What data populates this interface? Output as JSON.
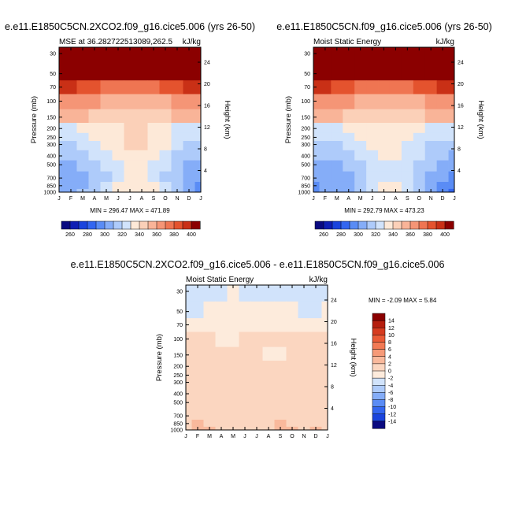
{
  "chart_data": [
    {
      "type": "heatmap",
      "title": "e.e11.E1850C5CN.2XCO2.f09_g16.cice5.006 (yrs 26-50)",
      "left_string": "MSE at 36.282722513089,262.5",
      "right_string": "kJ/kg",
      "ylabel": "Pressure (mb)",
      "y2label": "Height (km)",
      "x_ticks": [
        "J",
        "F",
        "M",
        "A",
        "M",
        "J",
        "J",
        "A",
        "S",
        "O",
        "N",
        "D",
        "J"
      ],
      "y_ticks": [
        "30",
        "50",
        "70",
        "100",
        "150",
        "200",
        "250",
        "300",
        "400",
        "500",
        "700",
        "850",
        "1000"
      ],
      "y_values": [
        30,
        50,
        70,
        100,
        150,
        200,
        250,
        300,
        400,
        500,
        700,
        850,
        1000
      ],
      "y2_ticks": [
        "24",
        "20",
        "16",
        "12",
        "8",
        "4"
      ],
      "y2_values": [
        24,
        20,
        16,
        12,
        8,
        4
      ],
      "min_max_text": "MIN = 296.47 MAX = 471.89",
      "min": 296.47,
      "max": 471.89,
      "colorbar_labels": [
        "260",
        "280",
        "300",
        "320",
        "340",
        "360",
        "380",
        "400"
      ],
      "colorbar_levels": [
        260,
        270,
        280,
        290,
        300,
        310,
        320,
        330,
        340,
        350,
        360,
        370,
        380,
        390,
        400
      ],
      "colorbar_colors": [
        "#0a0a80",
        "#0f1fb4",
        "#1a44dd",
        "#3366f0",
        "#5a8cf5",
        "#85adf8",
        "#aecbfa",
        "#d1e3fb",
        "#fde9d8",
        "#fbd0b8",
        "#f9b498",
        "#f59576",
        "#ef7552",
        "#e4532e",
        "#c93016",
        "#8b0000"
      ],
      "field_class_rows": [
        [
          15,
          15,
          15,
          15,
          15,
          15,
          15,
          15,
          15,
          15,
          15,
          15,
          15
        ],
        [
          15,
          15,
          15,
          15,
          15,
          15,
          15,
          15,
          15,
          15,
          15,
          15,
          15
        ],
        [
          14,
          14,
          13,
          13,
          12,
          12,
          12,
          12,
          12,
          13,
          13,
          14,
          14
        ],
        [
          11,
          11,
          11,
          11,
          10,
          10,
          10,
          10,
          10,
          10,
          11,
          11,
          11
        ],
        [
          10,
          10,
          10,
          9,
          9,
          9,
          9,
          9,
          9,
          9,
          10,
          10,
          10
        ],
        [
          7,
          7,
          8,
          8,
          8,
          8,
          9,
          9,
          8,
          8,
          7,
          7,
          7
        ],
        [
          7,
          7,
          7,
          8,
          8,
          8,
          9,
          9,
          8,
          8,
          7,
          7,
          7
        ],
        [
          6,
          6,
          7,
          7,
          8,
          8,
          9,
          9,
          8,
          8,
          7,
          6,
          6
        ],
        [
          6,
          6,
          6,
          7,
          7,
          8,
          8,
          8,
          8,
          7,
          6,
          6,
          6
        ],
        [
          5,
          5,
          6,
          6,
          7,
          7,
          8,
          8,
          7,
          7,
          6,
          5,
          5
        ],
        [
          5,
          5,
          5,
          6,
          6,
          7,
          8,
          8,
          7,
          6,
          6,
          5,
          5
        ],
        [
          5,
          5,
          5,
          6,
          7,
          8,
          8,
          8,
          8,
          7,
          6,
          5,
          4
        ],
        [
          5,
          5,
          6,
          6,
          7,
          8,
          8,
          8,
          8,
          7,
          6,
          5,
          4
        ]
      ]
    },
    {
      "type": "heatmap",
      "title": "e.e11.E1850C5CN.f09_g16.cice5.006 (yrs 26-50)",
      "left_string": "Moist Static Energy",
      "right_string": "kJ/kg",
      "ylabel": "Pressure (mb)",
      "y2label": "Height (km)",
      "x_ticks": [
        "J",
        "F",
        "M",
        "A",
        "M",
        "J",
        "J",
        "A",
        "S",
        "O",
        "N",
        "D",
        "J"
      ],
      "y_ticks": [
        "30",
        "50",
        "70",
        "100",
        "150",
        "200",
        "250",
        "300",
        "400",
        "500",
        "700",
        "850",
        "1000"
      ],
      "y_values": [
        30,
        50,
        70,
        100,
        150,
        200,
        250,
        300,
        400,
        500,
        700,
        850,
        1000
      ],
      "y2_ticks": [
        "24",
        "20",
        "16",
        "12",
        "8",
        "4"
      ],
      "y2_values": [
        24,
        20,
        16,
        12,
        8,
        4
      ],
      "min_max_text": "MIN = 292.79 MAX = 473.23",
      "min": 292.79,
      "max": 473.23,
      "colorbar_labels": [
        "260",
        "280",
        "300",
        "320",
        "340",
        "360",
        "380",
        "400"
      ],
      "colorbar_levels": [
        260,
        270,
        280,
        290,
        300,
        310,
        320,
        330,
        340,
        350,
        360,
        370,
        380,
        390,
        400
      ],
      "colorbar_colors": [
        "#0a0a80",
        "#0f1fb4",
        "#1a44dd",
        "#3366f0",
        "#5a8cf5",
        "#85adf8",
        "#aecbfa",
        "#d1e3fb",
        "#fde9d8",
        "#fbd0b8",
        "#f9b498",
        "#f59576",
        "#ef7552",
        "#e4532e",
        "#c93016",
        "#8b0000"
      ],
      "field_class_rows": [
        [
          15,
          15,
          15,
          15,
          15,
          15,
          15,
          15,
          15,
          15,
          15,
          15,
          15
        ],
        [
          15,
          15,
          15,
          15,
          15,
          15,
          15,
          15,
          15,
          15,
          15,
          15,
          15
        ],
        [
          14,
          14,
          13,
          13,
          12,
          12,
          12,
          12,
          12,
          13,
          13,
          14,
          14
        ],
        [
          11,
          11,
          11,
          11,
          10,
          10,
          10,
          10,
          10,
          10,
          11,
          11,
          11
        ],
        [
          10,
          10,
          10,
          9,
          9,
          9,
          9,
          9,
          9,
          9,
          10,
          10,
          10
        ],
        [
          7,
          7,
          7,
          8,
          8,
          8,
          8,
          8,
          8,
          8,
          7,
          7,
          7
        ],
        [
          7,
          7,
          7,
          7,
          8,
          8,
          8,
          8,
          8,
          7,
          7,
          7,
          7
        ],
        [
          6,
          6,
          6,
          7,
          7,
          8,
          8,
          8,
          7,
          7,
          6,
          6,
          6
        ],
        [
          6,
          6,
          6,
          6,
          7,
          7,
          8,
          8,
          7,
          7,
          6,
          6,
          5
        ],
        [
          5,
          5,
          5,
          6,
          6,
          7,
          7,
          7,
          7,
          6,
          6,
          5,
          5
        ],
        [
          5,
          5,
          5,
          5,
          6,
          7,
          7,
          7,
          7,
          6,
          5,
          5,
          4
        ],
        [
          4,
          5,
          5,
          5,
          6,
          7,
          8,
          8,
          7,
          6,
          5,
          4,
          4
        ],
        [
          4,
          5,
          5,
          5,
          6,
          7,
          8,
          8,
          7,
          6,
          5,
          4,
          3
        ]
      ]
    },
    {
      "type": "heatmap",
      "title": "e.e11.E1850C5CN.2XCO2.f09_g16.cice5.006 - e.e11.E1850C5CN.f09_g16.cice5.006",
      "left_string": "Moist Static Energy",
      "right_string": "kJ/kg",
      "ylabel": "Pressure (mb)",
      "y2label": "Height (km)",
      "x_ticks": [
        "J",
        "F",
        "M",
        "A",
        "M",
        "J",
        "J",
        "A",
        "S",
        "O",
        "N",
        "D",
        "J"
      ],
      "y_ticks": [
        "30",
        "50",
        "70",
        "100",
        "150",
        "200",
        "250",
        "300",
        "400",
        "500",
        "700",
        "850",
        "1000"
      ],
      "y_values": [
        30,
        50,
        70,
        100,
        150,
        200,
        250,
        300,
        400,
        500,
        700,
        850,
        1000
      ],
      "y2_ticks": [
        "24",
        "20",
        "16",
        "12",
        "8",
        "4"
      ],
      "y2_values": [
        24,
        20,
        16,
        12,
        8,
        4
      ],
      "min_max_text": "MIN = -2.09 MAX =   5.84",
      "min": -2.09,
      "max": 5.84,
      "colorbar_labels": [
        "14",
        "12",
        "10",
        "8",
        "6",
        "4",
        "2",
        "0",
        "-2",
        "-4",
        "-6",
        "-8",
        "-10",
        "-12",
        "-14"
      ],
      "colorbar_levels": [
        14,
        12,
        10,
        8,
        6,
        4,
        2,
        0,
        -2,
        -4,
        -6,
        -8,
        -10,
        -12,
        -14
      ],
      "colorbar_colors": [
        "#8b0000",
        "#b51e0e",
        "#d63b1f",
        "#ea5a36",
        "#f27a55",
        "#f69a78",
        "#f9b99c",
        "#fbd6c0",
        "#fdebdc",
        "#d1e3fb",
        "#aecbfa",
        "#85adf8",
        "#5a8cf5",
        "#3366f0",
        "#1a44dd",
        "#0a0a80"
      ],
      "field_class_rows": [
        [
          9,
          9,
          9,
          9,
          8,
          9,
          9,
          9,
          9,
          9,
          9,
          9,
          9
        ],
        [
          9,
          9,
          8,
          8,
          8,
          8,
          8,
          8,
          8,
          8,
          9,
          9,
          8
        ],
        [
          8,
          8,
          8,
          8,
          8,
          8,
          8,
          8,
          8,
          8,
          8,
          8,
          8
        ],
        [
          7,
          7,
          7,
          8,
          8,
          7,
          7,
          7,
          7,
          7,
          7,
          7,
          7
        ],
        [
          7,
          7,
          7,
          7,
          7,
          7,
          7,
          8,
          8,
          7,
          7,
          7,
          7
        ],
        [
          7,
          7,
          7,
          7,
          7,
          7,
          7,
          7,
          7,
          7,
          7,
          7,
          7
        ],
        [
          7,
          7,
          7,
          7,
          7,
          7,
          7,
          7,
          7,
          7,
          7,
          7,
          7
        ],
        [
          7,
          7,
          7,
          7,
          7,
          7,
          7,
          7,
          7,
          7,
          7,
          7,
          7
        ],
        [
          7,
          7,
          7,
          7,
          7,
          7,
          7,
          7,
          7,
          7,
          7,
          7,
          7
        ],
        [
          7,
          7,
          7,
          7,
          7,
          7,
          7,
          7,
          7,
          7,
          7,
          7,
          7
        ],
        [
          7,
          7,
          7,
          7,
          7,
          7,
          7,
          7,
          7,
          7,
          7,
          7,
          7
        ],
        [
          7,
          6,
          7,
          7,
          7,
          7,
          7,
          7,
          6,
          7,
          7,
          7,
          7
        ],
        [
          7,
          6,
          6,
          7,
          7,
          7,
          7,
          7,
          6,
          6,
          7,
          6,
          7
        ]
      ]
    }
  ]
}
